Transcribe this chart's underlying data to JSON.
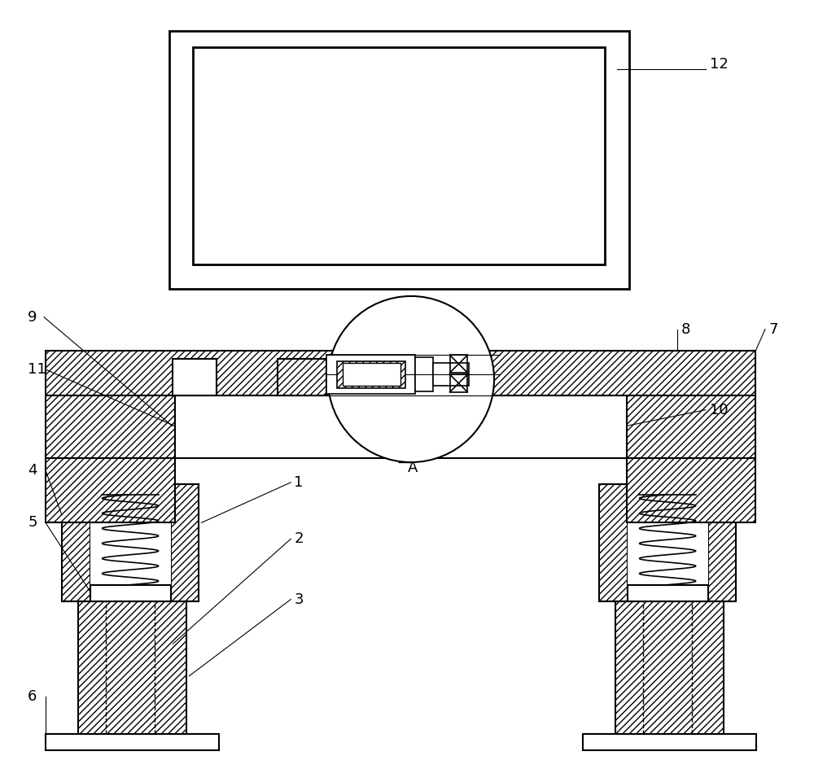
{
  "bg_color": "#ffffff",
  "line_color": "#000000",
  "fig_width": 10.0,
  "fig_height": 9.34
}
